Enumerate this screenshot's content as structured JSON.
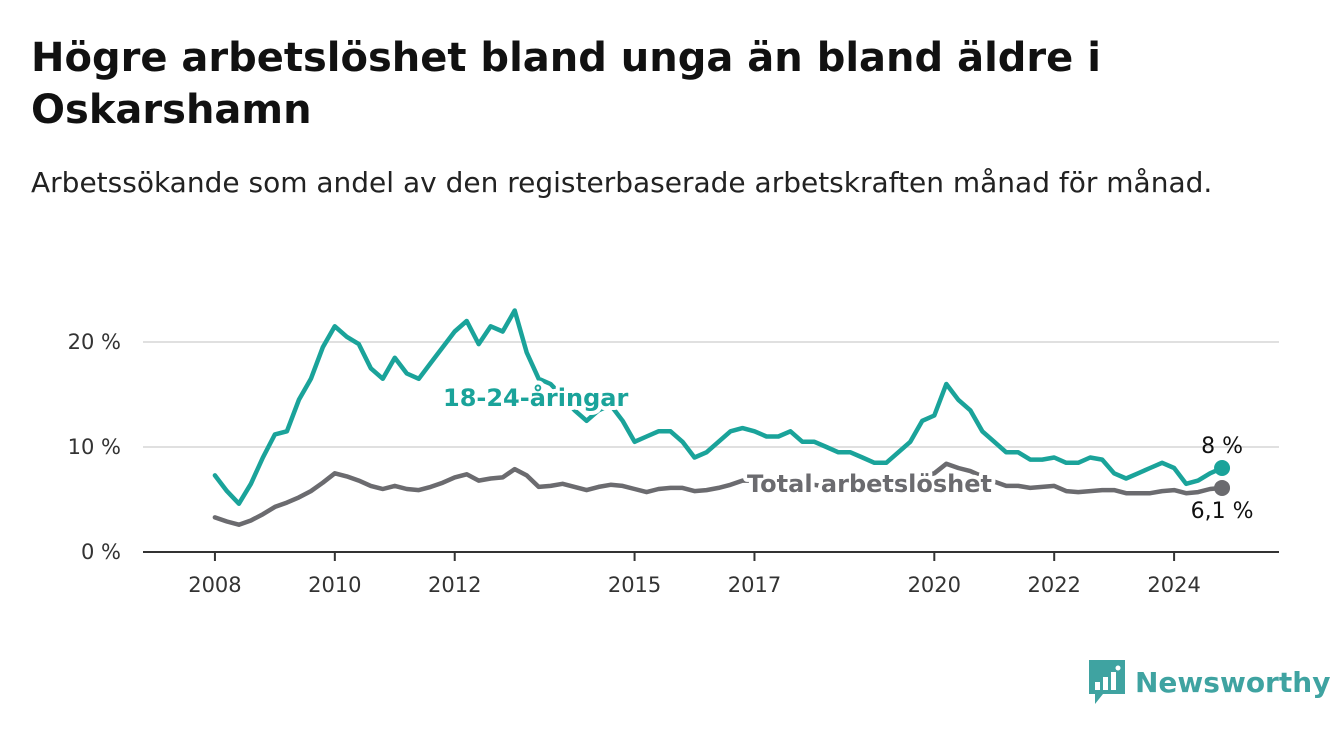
{
  "title": "Högre arbetslöshet bland unga än bland äldre i Oskarshamn",
  "subtitle": "Arbetssökande som andel av den registerbaserade arbetskraften månad för månad.",
  "brand": {
    "name": "Newsworthy",
    "color": "#3fa3a1",
    "icon": "bar-chart-logo-icon"
  },
  "chart_data": {
    "type": "line",
    "x_ticks": [
      "2008",
      "2010",
      "2012",
      "2015",
      "2017",
      "2020",
      "2022",
      "2024"
    ],
    "x_tick_values": [
      2008.0,
      2010.0,
      2012.0,
      2015.0,
      2017.0,
      2020.0,
      2022.0,
      2024.0
    ],
    "y_ticks": [
      "0 %",
      "10 %",
      "20 %"
    ],
    "y_tick_values": [
      0,
      10,
      20
    ],
    "ylim": [
      0,
      24
    ],
    "xlim": [
      2006.8,
      2025.75
    ],
    "grid": true,
    "series": [
      {
        "name": "18-24-åringar",
        "color": "#1aa39a",
        "end_label": "8 %",
        "x": [
          2008.0,
          2008.2,
          2008.4,
          2008.6,
          2008.8,
          2009.0,
          2009.2,
          2009.4,
          2009.6,
          2009.8,
          2010.0,
          2010.2,
          2010.4,
          2010.6,
          2010.8,
          2011.0,
          2011.2,
          2011.4,
          2011.6,
          2011.8,
          2012.0,
          2012.2,
          2012.4,
          2012.6,
          2012.8,
          2013.0,
          2013.2,
          2013.4,
          2013.6,
          2013.8,
          2014.0,
          2014.2,
          2014.4,
          2014.6,
          2014.8,
          2015.0,
          2015.2,
          2015.4,
          2015.6,
          2015.8,
          2016.0,
          2016.2,
          2016.4,
          2016.6,
          2016.8,
          2017.0,
          2017.2,
          2017.4,
          2017.6,
          2017.8,
          2018.0,
          2018.2,
          2018.4,
          2018.6,
          2018.8,
          2019.0,
          2019.2,
          2019.4,
          2019.6,
          2019.8,
          2020.0,
          2020.2,
          2020.4,
          2020.6,
          2020.8,
          2021.0,
          2021.2,
          2021.4,
          2021.6,
          2021.8,
          2022.0,
          2022.2,
          2022.4,
          2022.6,
          2022.8,
          2023.0,
          2023.2,
          2023.4,
          2023.6,
          2023.8,
          2024.0,
          2024.2,
          2024.4,
          2024.6,
          2024.8
        ],
        "values": [
          7.3,
          5.8,
          4.6,
          6.5,
          9.0,
          11.2,
          11.5,
          14.5,
          16.5,
          19.5,
          21.5,
          20.5,
          19.8,
          17.5,
          16.5,
          18.5,
          17.0,
          16.5,
          18.0,
          19.5,
          21.0,
          22.0,
          19.8,
          21.5,
          21.0,
          23.0,
          19.0,
          16.5,
          16.0,
          14.8,
          13.5,
          12.5,
          13.5,
          14.0,
          12.5,
          10.5,
          11.0,
          11.5,
          11.5,
          10.5,
          9.0,
          9.5,
          10.5,
          11.5,
          11.8,
          11.5,
          11.0,
          11.0,
          11.5,
          10.5,
          10.5,
          10.0,
          9.5,
          9.5,
          9.0,
          8.5,
          8.5,
          9.5,
          10.5,
          12.5,
          13.0,
          16.0,
          14.5,
          13.5,
          11.5,
          10.5,
          9.5,
          9.5,
          8.8,
          8.8,
          9.0,
          8.5,
          8.5,
          9.0,
          8.8,
          7.5,
          7.0,
          7.5,
          8.0,
          8.5,
          8.0,
          6.5,
          6.8,
          7.5,
          8.0
        ]
      },
      {
        "name": "Total arbetslöshet",
        "color": "#6b6b6f",
        "end_label": "6,1 %",
        "x": [
          2008.0,
          2008.2,
          2008.4,
          2008.6,
          2008.8,
          2009.0,
          2009.2,
          2009.4,
          2009.6,
          2009.8,
          2010.0,
          2010.2,
          2010.4,
          2010.6,
          2010.8,
          2011.0,
          2011.2,
          2011.4,
          2011.6,
          2011.8,
          2012.0,
          2012.2,
          2012.4,
          2012.6,
          2012.8,
          2013.0,
          2013.2,
          2013.4,
          2013.6,
          2013.8,
          2014.0,
          2014.2,
          2014.4,
          2014.6,
          2014.8,
          2015.0,
          2015.2,
          2015.4,
          2015.6,
          2015.8,
          2016.0,
          2016.2,
          2016.4,
          2016.6,
          2016.8,
          2017.0,
          2017.2,
          2017.4,
          2017.6,
          2017.8,
          2018.0,
          2018.2,
          2018.4,
          2018.6,
          2018.8,
          2019.0,
          2019.2,
          2019.4,
          2019.6,
          2019.8,
          2020.0,
          2020.2,
          2020.4,
          2020.6,
          2020.8,
          2021.0,
          2021.2,
          2021.4,
          2021.6,
          2021.8,
          2022.0,
          2022.2,
          2022.4,
          2022.6,
          2022.8,
          2023.0,
          2023.2,
          2023.4,
          2023.6,
          2023.8,
          2024.0,
          2024.2,
          2024.4,
          2024.6,
          2024.8
        ],
        "values": [
          3.3,
          2.9,
          2.6,
          3.0,
          3.6,
          4.3,
          4.7,
          5.2,
          5.8,
          6.6,
          7.5,
          7.2,
          6.8,
          6.3,
          6.0,
          6.3,
          6.0,
          5.9,
          6.2,
          6.6,
          7.1,
          7.4,
          6.8,
          7.0,
          7.1,
          7.9,
          7.3,
          6.2,
          6.3,
          6.5,
          6.2,
          5.9,
          6.2,
          6.4,
          6.3,
          6.0,
          5.7,
          6.0,
          6.1,
          6.1,
          5.8,
          5.9,
          6.1,
          6.4,
          6.8,
          6.8,
          6.6,
          6.5,
          6.6,
          6.4,
          6.4,
          6.2,
          6.0,
          6.0,
          6.0,
          5.9,
          5.9,
          6.1,
          6.5,
          7.2,
          7.5,
          8.4,
          8.0,
          7.7,
          7.2,
          6.7,
          6.3,
          6.3,
          6.1,
          6.2,
          6.3,
          5.8,
          5.7,
          5.8,
          5.9,
          5.9,
          5.6,
          5.6,
          5.6,
          5.8,
          5.9,
          5.6,
          5.7,
          6.0,
          6.1
        ]
      }
    ]
  }
}
